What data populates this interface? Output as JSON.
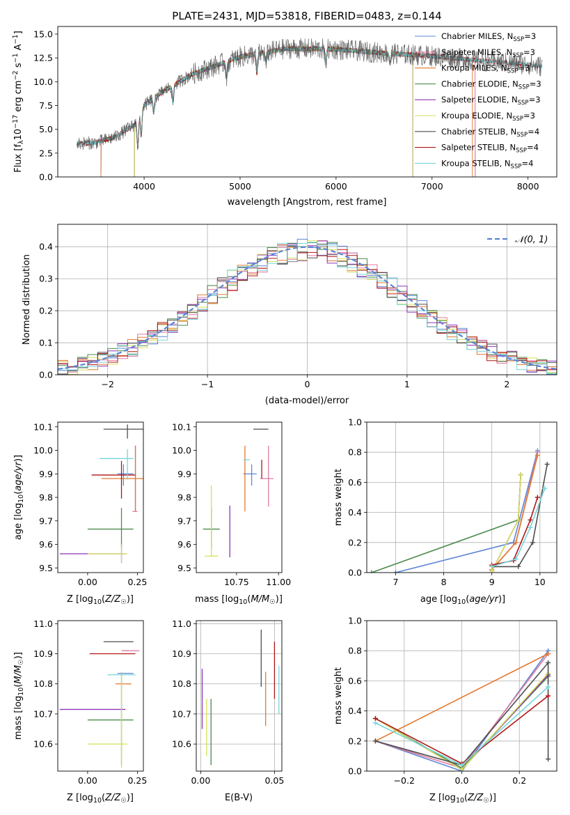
{
  "colors": {
    "Chabrier MILES": "#5b84d6",
    "Salpeter MILES": "#e07aa0",
    "Kroupa MILES": "#e3782e",
    "Chabrier ELODIE": "#4c8a4c",
    "Salpeter ELODIE": "#8e33b8",
    "Kroupa ELODIE": "#d6e05a",
    "Chabrier STELIB": "#4d4d4d",
    "Salpeter STELIB": "#b01515",
    "Kroupa STELIB": "#76d6db",
    "normal_fit": "#5b84d6"
  },
  "chart_data": [
    {
      "id": "spectrum",
      "type": "line",
      "title": "PLATE=2431, MJD=53818, FIBERID=0483, z=0.144",
      "xlabel": "wavelength [Angstrom, rest frame]",
      "ylabel": "Flux [f_λ10^-17 erg cm^-2 s^-1 A^-1]",
      "xlim": [
        3100,
        8300
      ],
      "ylim": [
        0,
        15.8
      ],
      "xticks": [
        4000,
        5000,
        6000,
        7000,
        8000
      ],
      "yticks": [
        0.0,
        2.5,
        5.0,
        7.5,
        10.0,
        12.5,
        15.0
      ],
      "legend_position": "top-right",
      "legend": [
        {
          "series": "Chabrier MILES",
          "n_ssp": "3"
        },
        {
          "series": "Salpeter MILES",
          "n_ssp": "3"
        },
        {
          "series": "Kroupa MILES",
          "n_ssp": "3"
        },
        {
          "series": "Chabrier ELODIE",
          "n_ssp": "3"
        },
        {
          "series": "Salpeter ELODIE",
          "n_ssp": "3"
        },
        {
          "series": "Kroupa ELODIE",
          "n_ssp": "3"
        },
        {
          "series": "Chabrier STELIB",
          "n_ssp": "4"
        },
        {
          "series": "Salpeter STELIB",
          "n_ssp": "4"
        },
        {
          "series": "Kroupa STELIB",
          "n_ssp": "4"
        }
      ],
      "continuum_points": [
        [
          3300,
          3.5
        ],
        [
          3500,
          3.6
        ],
        [
          3700,
          4.2
        ],
        [
          3900,
          5.5
        ],
        [
          4000,
          7.5
        ],
        [
          4200,
          9.0
        ],
        [
          4500,
          10.8
        ],
        [
          5000,
          12.6
        ],
        [
          5500,
          13.5
        ],
        [
          6000,
          13.4
        ],
        [
          6500,
          13.0
        ],
        [
          7000,
          12.7
        ],
        [
          7500,
          12.2
        ],
        [
          8000,
          11.8
        ],
        [
          8150,
          11.6
        ]
      ],
      "series_ranges": {
        "Chabrier MILES": [
          3550,
          7450
        ],
        "Salpeter MILES": [
          3550,
          7450
        ],
        "Kroupa MILES": [
          3550,
          7420
        ],
        "Chabrier ELODIE": [
          3900,
          6800
        ],
        "Salpeter ELODIE": [
          3900,
          6800
        ],
        "Kroupa ELODIE": [
          3900,
          6800
        ],
        "Chabrier STELIB": [
          3300,
          8150
        ],
        "Salpeter STELIB": [
          3300,
          8150
        ],
        "Kroupa STELIB": [
          3300,
          8150
        ]
      },
      "dropouts": [
        3555,
        3900,
        6800,
        7420
      ]
    },
    {
      "id": "residuals",
      "type": "histogram",
      "xlabel": "(data-model)/error",
      "ylabel": "Normed distribution",
      "xlim": [
        -2.5,
        2.5
      ],
      "ylim": [
        0,
        0.47
      ],
      "xticks": [
        -2,
        -1,
        0,
        1,
        2
      ],
      "yticks": [
        0.0,
        0.1,
        0.2,
        0.3,
        0.4
      ],
      "grid": true,
      "legend_position": "top-right",
      "legend": [
        "𝒩(0, 1)"
      ],
      "bins": {
        "start": -2.5,
        "width": 0.1,
        "count": 50
      },
      "normal": {
        "mu": 0,
        "sigma": 1
      }
    },
    {
      "id": "age_vs_Z",
      "type": "errorbar",
      "xlabel": "Z [log10(Z/Z☉)]",
      "ylabel": "age [log10(age/yr)]",
      "xlim": [
        -0.15,
        0.28
      ],
      "ylim": [
        9.48,
        10.12
      ],
      "xticks": [
        0.0,
        0.25
      ],
      "yticks": [
        9.5,
        9.6,
        9.7,
        9.8,
        9.9,
        10.0,
        10.1
      ],
      "points": [
        {
          "series": "Chabrier MILES",
          "x": 0.18,
          "xerr": [
            0.03,
            0.05
          ],
          "y": 9.9,
          "yerr": [
            0.05,
            0.04
          ]
        },
        {
          "series": "Salpeter MILES",
          "x": 0.24,
          "xerr": [
            0.015,
            0.01
          ],
          "y": 9.74,
          "yerr": [
            0.0,
            0.28
          ]
        },
        {
          "series": "Kroupa MILES",
          "x": 0.24,
          "xerr": [
            0.17,
            0.04
          ],
          "y": 9.88,
          "yerr": [
            0.14,
            0.14
          ]
        },
        {
          "series": "Chabrier ELODIE",
          "x": 0.17,
          "xerr": [
            0.17,
            0.06
          ],
          "y": 9.665,
          "yerr": [
            0.08,
            0.09
          ]
        },
        {
          "series": "Salpeter ELODIE",
          "x": 0.17,
          "xerr": [
            0.31,
            0.02
          ],
          "y": 9.56,
          "yerr": [
            0.04,
            0.04
          ]
        },
        {
          "series": "Kroupa ELODIE",
          "x": 0.17,
          "xerr": [
            0.17,
            0.03
          ],
          "y": 9.56,
          "yerr": [
            0.04,
            0.04
          ]
        },
        {
          "series": "Chabrier STELIB",
          "x": 0.2,
          "xerr": [
            0.12,
            0.09
          ],
          "y": 10.09,
          "yerr": [
            0.04,
            0.02
          ]
        },
        {
          "series": "Salpeter STELIB",
          "x": 0.17,
          "xerr": [
            0.15,
            0.07
          ],
          "y": 9.895,
          "yerr": [
            0.1,
            0.06
          ]
        },
        {
          "series": "Kroupa STELIB",
          "x": 0.2,
          "xerr": [
            0.14,
            0.03
          ],
          "y": 9.965,
          "yerr": [
            0.09,
            0.04
          ]
        }
      ]
    },
    {
      "id": "age_vs_mass",
      "type": "errorbar",
      "xlabel": "mass [log10(M/M☉)]",
      "ylabel": "",
      "xlim": [
        10.51,
        11.02
      ],
      "ylim": [
        9.48,
        10.12
      ],
      "xticks": [
        10.75,
        11.0
      ],
      "yticks": [
        9.5,
        9.6,
        9.7,
        9.8,
        9.9,
        10.0,
        10.1
      ],
      "points": [
        {
          "series": "Chabrier MILES",
          "x": 10.84,
          "xerr": [
            0.05,
            0.03
          ],
          "y": 9.9,
          "yerr": [
            0.05,
            0.04
          ]
        },
        {
          "series": "Salpeter MILES",
          "x": 10.94,
          "xerr": [
            0.05,
            0.03
          ],
          "y": 9.88,
          "yerr": [
            0.12,
            0.14
          ]
        },
        {
          "series": "Kroupa MILES",
          "x": 10.8,
          "xerr": [
            0.0,
            0.0
          ],
          "y": 9.88,
          "yerr": [
            0.14,
            0.14
          ]
        },
        {
          "series": "Chabrier ELODIE",
          "x": 10.6,
          "xerr": [
            0.05,
            0.05
          ],
          "y": 9.665,
          "yerr": [
            0.08,
            0.09
          ]
        },
        {
          "series": "Salpeter ELODIE",
          "x": 10.71,
          "xerr": [
            0.0,
            0.0
          ],
          "y": 9.665,
          "yerr": [
            0.12,
            0.1
          ]
        },
        {
          "series": "Kroupa ELODIE",
          "x": 10.6,
          "xerr": [
            0.04,
            0.04
          ],
          "y": 9.55,
          "yerr": [
            0.0,
            0.3
          ]
        },
        {
          "series": "Chabrier STELIB",
          "x": 10.94,
          "xerr": [
            0.09,
            0.0
          ],
          "y": 10.09,
          "yerr": [
            0.0,
            0.0
          ]
        },
        {
          "series": "Salpeter STELIB",
          "x": 10.9,
          "xerr": [
            0.0,
            0.0
          ],
          "y": 9.88,
          "yerr": [
            0.0,
            0.08
          ]
        },
        {
          "series": "Kroupa STELIB",
          "x": 10.83,
          "xerr": [
            0.04,
            0.0
          ],
          "y": 9.96,
          "yerr": [
            0.0,
            0.0
          ]
        }
      ]
    },
    {
      "id": "weight_vs_age",
      "type": "line",
      "xlabel": "age  [log10(age/yr)]",
      "ylabel": "mass weight",
      "xlim": [
        6.4,
        10.35
      ],
      "ylim": [
        0,
        1.0
      ],
      "xticks": [
        7,
        8,
        9,
        10
      ],
      "yticks": [
        0.0,
        0.2,
        0.4,
        0.6,
        0.8,
        1.0
      ],
      "grid": true,
      "series": [
        {
          "name": "Chabrier MILES",
          "points": [
            [
              7.0,
              0.0
            ],
            [
              9.45,
              0.2
            ],
            [
              9.95,
              0.81
            ]
          ]
        },
        {
          "name": "Salpeter MILES",
          "points": [
            [
              9.0,
              0.02
            ],
            [
              9.5,
              0.2
            ],
            [
              9.95,
              0.8
            ]
          ]
        },
        {
          "name": "Kroupa MILES",
          "points": [
            [
              9.0,
              0.02
            ],
            [
              9.5,
              0.2
            ],
            [
              9.95,
              0.78
            ]
          ]
        },
        {
          "name": "Chabrier ELODIE",
          "points": [
            [
              6.5,
              0.0
            ],
            [
              9.55,
              0.35
            ],
            [
              9.6,
              0.65
            ]
          ]
        },
        {
          "name": "Salpeter ELODIE",
          "points": [
            [
              9.0,
              0.01
            ],
            [
              9.55,
              0.35
            ],
            [
              9.6,
              0.65
            ]
          ]
        },
        {
          "name": "Kroupa ELODIE",
          "points": [
            [
              9.0,
              0.01
            ],
            [
              9.55,
              0.35
            ],
            [
              9.6,
              0.65
            ]
          ]
        },
        {
          "name": "Chabrier STELIB",
          "points": [
            [
              9.0,
              0.04
            ],
            [
              9.55,
              0.04
            ],
            [
              9.85,
              0.2
            ],
            [
              10.15,
              0.72
            ]
          ]
        },
        {
          "name": "Salpeter STELIB",
          "points": [
            [
              9.0,
              0.05
            ],
            [
              9.45,
              0.08
            ],
            [
              9.8,
              0.35
            ],
            [
              9.95,
              0.5
            ]
          ]
        },
        {
          "name": "Kroupa STELIB",
          "points": [
            [
              9.0,
              0.04
            ],
            [
              9.5,
              0.09
            ],
            [
              9.8,
              0.3
            ],
            [
              10.1,
              0.56
            ]
          ]
        }
      ]
    },
    {
      "id": "mass_vs_Z",
      "type": "errorbar",
      "xlabel": "Z [log10(Z/Z☉)]",
      "ylabel": "mass [log10(M/M☉)]",
      "xlim": [
        -0.15,
        0.28
      ],
      "ylim": [
        10.51,
        11.01
      ],
      "xticks": [
        0.0,
        0.25
      ],
      "yticks": [
        10.6,
        10.7,
        10.8,
        10.9,
        11.0
      ],
      "points": [
        {
          "series": "Chabrier MILES",
          "x": 0.18,
          "xerr": [
            0.03,
            0.05
          ],
          "y": 10.835,
          "yerr": [
            0.0,
            0.0
          ]
        },
        {
          "series": "Salpeter MILES",
          "x": 0.22,
          "xerr": [
            0.05,
            0.04
          ],
          "y": 10.91,
          "yerr": [
            0.0,
            0.0
          ]
        },
        {
          "series": "Kroupa MILES",
          "x": 0.18,
          "xerr": [
            0.04,
            0.04
          ],
          "y": 10.8,
          "yerr": [
            0.0,
            0.0
          ]
        },
        {
          "series": "Chabrier ELODIE",
          "x": 0.17,
          "xerr": [
            0.17,
            0.06
          ],
          "y": 10.68,
          "yerr": [
            0.15,
            0.16
          ]
        },
        {
          "series": "Salpeter ELODIE",
          "x": 0.17,
          "xerr": [
            0.31,
            0.02
          ],
          "y": 10.715,
          "yerr": [
            0.0,
            0.0
          ]
        },
        {
          "series": "Kroupa ELODIE",
          "x": 0.17,
          "xerr": [
            0.17,
            0.03
          ],
          "y": 10.6,
          "yerr": [
            0.08,
            0.24
          ]
        },
        {
          "series": "Chabrier STELIB",
          "x": 0.2,
          "xerr": [
            0.12,
            0.03
          ],
          "y": 10.94,
          "yerr": [
            0.0,
            0.0
          ]
        },
        {
          "series": "Salpeter STELIB",
          "x": 0.17,
          "xerr": [
            0.16,
            0.07
          ],
          "y": 10.9,
          "yerr": [
            0.0,
            0.0
          ]
        },
        {
          "series": "Kroupa STELIB",
          "x": 0.21,
          "xerr": [
            0.11,
            0.03
          ],
          "y": 10.83,
          "yerr": [
            0.0,
            0.0
          ]
        }
      ]
    },
    {
      "id": "mass_vs_EBV",
      "type": "errorbar",
      "xlabel": "E(B-V)",
      "ylabel": "",
      "xlim": [
        -0.003,
        0.055
      ],
      "ylim": [
        10.51,
        11.01
      ],
      "xticks": [
        0.0,
        0.05
      ],
      "yticks": [
        10.6,
        10.7,
        10.8,
        10.9,
        11.0
      ],
      "grid": true,
      "points": [
        {
          "series": "Chabrier MILES",
          "x": 0.05,
          "y": 10.75,
          "yerr": [
            0.0,
            0.0
          ]
        },
        {
          "series": "Salpeter MILES",
          "x": 0.05,
          "y": 10.8,
          "yerr": [
            0.0,
            0.0
          ]
        },
        {
          "series": "Kroupa MILES",
          "x": 0.044,
          "y": 10.76,
          "yerr": [
            0.1,
            0.08
          ]
        },
        {
          "series": "Chabrier ELODIE",
          "x": 0.007,
          "y": 10.64,
          "yerr": [
            0.11,
            0.11
          ]
        },
        {
          "series": "Salpeter ELODIE",
          "x": 0.001,
          "y": 10.74,
          "yerr": [
            0.09,
            0.11
          ]
        },
        {
          "series": "Kroupa ELODIE",
          "x": 0.004,
          "y": 10.65,
          "yerr": [
            0.09,
            0.1
          ]
        },
        {
          "series": "Chabrier STELIB",
          "x": 0.041,
          "y": 10.88,
          "yerr": [
            0.09,
            0.1
          ]
        },
        {
          "series": "Salpeter STELIB",
          "x": 0.05,
          "y": 10.84,
          "yerr": [
            0.09,
            0.1
          ]
        },
        {
          "series": "Kroupa STELIB",
          "x": 0.053,
          "y": 10.78,
          "yerr": [
            0.08,
            0.08
          ]
        }
      ]
    },
    {
      "id": "weight_vs_Z",
      "type": "line",
      "xlabel": "Z [log10(Z/Z☉)]",
      "ylabel": "mass weight",
      "xlim": [
        -0.33,
        0.33
      ],
      "ylim": [
        0,
        1.0
      ],
      "xticks": [
        -0.2,
        0.0,
        0.2
      ],
      "yticks": [
        0.0,
        0.2,
        0.4,
        0.6,
        0.8,
        1.0
      ],
      "grid": true,
      "series": [
        {
          "name": "Chabrier MILES",
          "points": [
            [
              -0.3,
              0.2
            ],
            [
              0.0,
              0.0
            ],
            [
              0.3,
              0.8
            ]
          ]
        },
        {
          "name": "Salpeter MILES",
          "points": [
            [
              -0.3,
              0.2
            ],
            [
              0.0,
              0.02
            ],
            [
              0.3,
              0.78
            ]
          ]
        },
        {
          "name": "Kroupa MILES",
          "points": [
            [
              -0.3,
              0.2
            ],
            [
              0.3,
              0.78
            ]
          ]
        },
        {
          "name": "Chabrier ELODIE",
          "points": [
            [
              -0.3,
              0.35
            ],
            [
              0.0,
              0.02
            ],
            [
              0.3,
              0.63
            ]
          ]
        },
        {
          "name": "Salpeter ELODIE",
          "points": [
            [
              -0.3,
              0.35
            ],
            [
              0.0,
              0.01
            ],
            [
              0.3,
              0.64
            ]
          ]
        },
        {
          "name": "Kroupa ELODIE",
          "points": [
            [
              -0.3,
              0.35
            ],
            [
              0.0,
              0.01
            ],
            [
              0.3,
              0.65
            ]
          ]
        },
        {
          "name": "Chabrier STELIB",
          "points": [
            [
              -0.3,
              0.2
            ],
            [
              0.0,
              0.04
            ],
            [
              0.3,
              0.72
            ],
            [
              0.3,
              0.08
            ]
          ]
        },
        {
          "name": "Salpeter STELIB",
          "points": [
            [
              -0.3,
              0.35
            ],
            [
              0.0,
              0.05
            ],
            [
              0.3,
              0.5
            ]
          ]
        },
        {
          "name": "Kroupa STELIB",
          "points": [
            [
              -0.3,
              0.32
            ],
            [
              0.0,
              0.04
            ],
            [
              0.3,
              0.56
            ]
          ]
        }
      ]
    }
  ]
}
